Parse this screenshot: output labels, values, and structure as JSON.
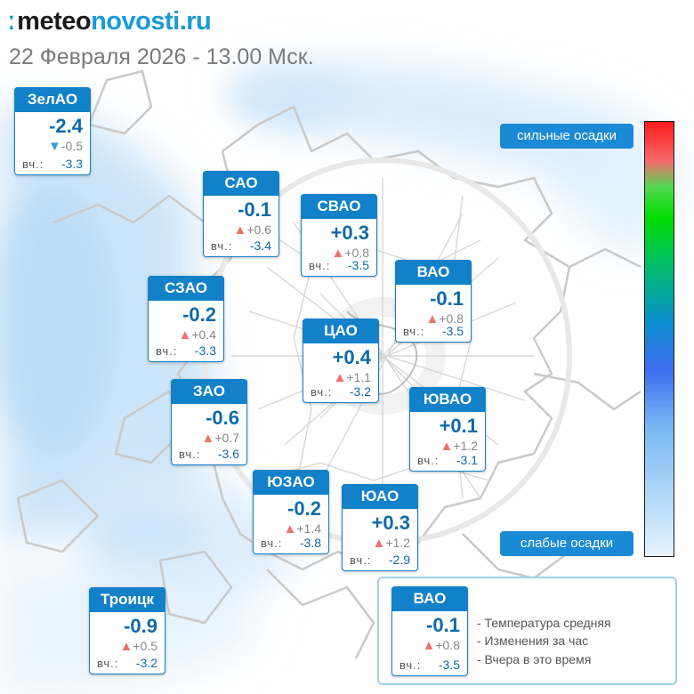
{
  "header": {
    "logo_mark": "ː",
    "logo_part1": "meteo",
    "logo_part2": "novosti.ru",
    "datetime": "22 Февраля 2026 - 13.00 Мск."
  },
  "yesterday_label": "вч.:",
  "districts": [
    {
      "id": "zelao",
      "name": "ЗелАО",
      "temp": "-2.4",
      "dir": "down",
      "change": "-0.5",
      "yesterday": "-3.3"
    },
    {
      "id": "sao",
      "name": "САО",
      "temp": "-0.1",
      "dir": "up",
      "change": "+0.6",
      "yesterday": "-3.4"
    },
    {
      "id": "svao",
      "name": "СВАО",
      "temp": "+0.3",
      "dir": "up",
      "change": "+0.8",
      "yesterday": "-3.5"
    },
    {
      "id": "vao",
      "name": "ВАО",
      "temp": "-0.1",
      "dir": "up",
      "change": "+0.8",
      "yesterday": "-3.5"
    },
    {
      "id": "szao",
      "name": "СЗАО",
      "temp": "-0.2",
      "dir": "up",
      "change": "+0.4",
      "yesterday": "-3.3"
    },
    {
      "id": "cao",
      "name": "ЦАО",
      "temp": "+0.4",
      "dir": "up",
      "change": "+1.1",
      "yesterday": "-3.2"
    },
    {
      "id": "zao",
      "name": "ЗАО",
      "temp": "-0.6",
      "dir": "up",
      "change": "+0.7",
      "yesterday": "-3.6"
    },
    {
      "id": "yuvao",
      "name": "ЮВАО",
      "temp": "+0.1",
      "dir": "up",
      "change": "+1.2",
      "yesterday": "-3.1"
    },
    {
      "id": "yuzao",
      "name": "ЮЗАО",
      "temp": "-0.2",
      "dir": "up",
      "change": "+1.4",
      "yesterday": "-3.8"
    },
    {
      "id": "yuao",
      "name": "ЮАО",
      "temp": "+0.3",
      "dir": "up",
      "change": "+1.2",
      "yesterday": "-2.9"
    },
    {
      "id": "troitsk",
      "name": "Троицк",
      "temp": "-0.9",
      "dir": "up",
      "change": "+0.5",
      "yesterday": "-3.2"
    }
  ],
  "scale": {
    "high_label": "сильные осадки",
    "low_label": "слабые осадки"
  },
  "legend": {
    "sample": {
      "name": "ВАО",
      "temp": "-0.1",
      "dir": "up",
      "change": "+0.8",
      "yesterday": "-3.5"
    },
    "line1": "- Температура средняя",
    "line2": "- Изменения за час",
    "line3": "- Вчера в это время"
  },
  "colors": {
    "card_header": "#1281c9",
    "temp_text": "#0d6aa8",
    "arrow_up": "#ef6f6f",
    "arrow_down": "#3d9be3",
    "precip_light": "#cfe6f8"
  },
  "icons": {
    "rise": "triangle-up-icon",
    "fall": "triangle-down-icon"
  }
}
